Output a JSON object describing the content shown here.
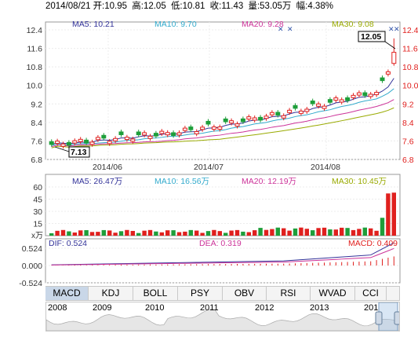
{
  "header": {
    "date": "2014/08/21",
    "open": "开:10.95",
    "high": "高:12.05",
    "low": "低:10.81",
    "close": "收:11.43",
    "volume": "量:53.05万",
    "change": "幅:4.38%"
  },
  "price_panel": {
    "ma_labels": {
      "ma5": "MA5: 10.21",
      "ma10": "MA10: 9.70",
      "ma20": "MA20: 9.28",
      "ma30": "MA30: 9.08"
    },
    "y_ticks": [
      "12.4",
      "11.6",
      "10.8",
      "10.0",
      "9.2",
      "8.4",
      "7.6",
      "6.8"
    ],
    "x_ticks": [
      "2014/06",
      "2014/07",
      "2014/08"
    ],
    "high_marker": "12.05",
    "low_marker": "7.13",
    "colors": {
      "up": "#e0201e",
      "down": "#1e9e3a",
      "ma5": "#333399",
      "ma10": "#33aacc",
      "ma20": "#cc3399",
      "ma30": "#99aa00"
    }
  },
  "volume_panel": {
    "ma_labels": {
      "ma5": "MA5: 26.47万",
      "ma10": "MA10: 16.56万",
      "ma20": "MA20: 12.19万",
      "ma30": "MA30: 10.45万"
    },
    "y_ticks": [
      "60",
      "45",
      "30",
      "15"
    ],
    "unit": "x万"
  },
  "macd_panel": {
    "dif": "DIF: 0.524",
    "dea": "DEA: 0.319",
    "macd": "MACD: 0.409",
    "y_ticks": [
      "0.524",
      "0.000",
      "-0.524"
    ]
  },
  "indicator_tabs": [
    "MACD",
    "KDJ",
    "BOLL",
    "PSY",
    "OBV",
    "RSI",
    "WVAD",
    "CCI"
  ],
  "active_tab": "MACD",
  "navigator_years": [
    "2008",
    "2009",
    "2010",
    "2011",
    "2012",
    "2013",
    "201"
  ]
}
